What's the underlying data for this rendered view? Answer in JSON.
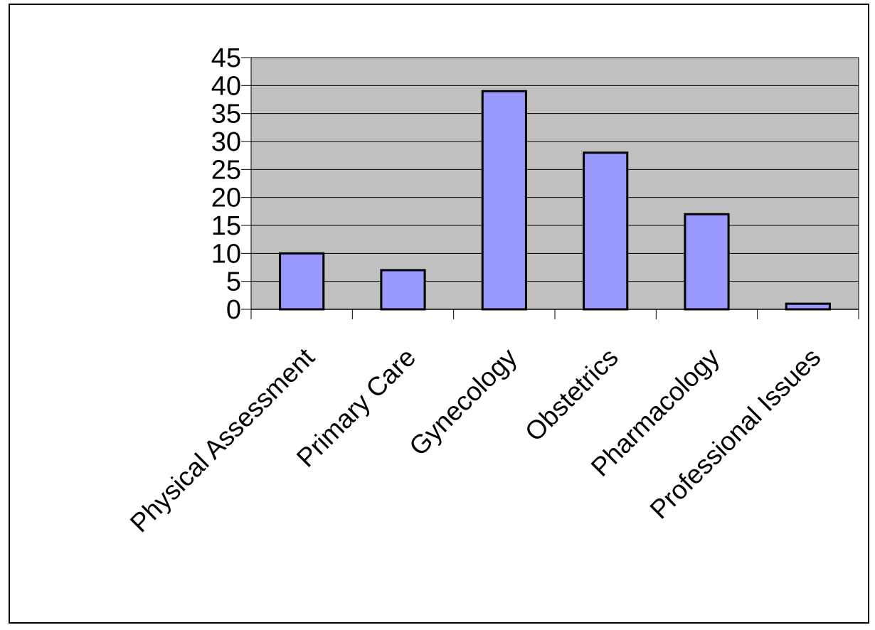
{
  "chart_data": {
    "type": "bar",
    "categories": [
      "Physical Assessment",
      "Primary Care",
      "Gynecology",
      "Obstetrics",
      "Pharmacology",
      "Professional Issues"
    ],
    "values": [
      10,
      7,
      39,
      28,
      17,
      1
    ],
    "ylim": [
      0,
      45
    ],
    "y_ticks": [
      0,
      5,
      10,
      15,
      20,
      25,
      30,
      35,
      40,
      45
    ],
    "grid": true,
    "legend": "none",
    "colors": {
      "bar_fill": "#9999ff",
      "bar_stroke": "#000000",
      "plot_bg": "#c0c0c0",
      "gridline": "#000000",
      "frame": "#000000"
    }
  }
}
